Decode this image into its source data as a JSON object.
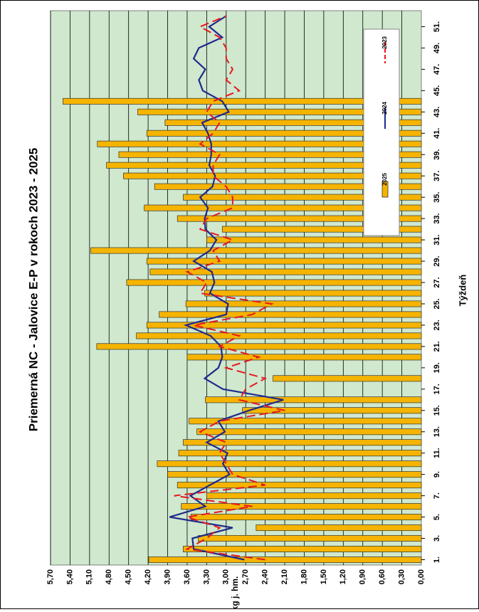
{
  "chart_data": {
    "type": "bar",
    "title": "Priemerná NC - Jalovice E-P v rokoch 2023 - 2025",
    "xlabel": "Týždeň",
    "ylabel": "€/kg j. hm.",
    "ylim": [
      0,
      5.7
    ],
    "grid": true,
    "legend_position": "top-right",
    "yticks": [
      "0,00",
      "0,30",
      "0,60",
      "0,90",
      "1,20",
      "1,50",
      "1,80",
      "2,10",
      "2,40",
      "2,70",
      "3,00",
      "3,30",
      "3,60",
      "3,90",
      "4,20",
      "4,50",
      "4,80",
      "5,10",
      "5,40",
      "5,70"
    ],
    "xticks": [
      "1.",
      "3.",
      "5.",
      "7.",
      "9.",
      "11.",
      "13.",
      "15.",
      "17.",
      "19.",
      "21.",
      "23.",
      "25.",
      "27.",
      "29.",
      "31.",
      "33.",
      "35.",
      "37.",
      "39.",
      "41.",
      "43.",
      "45.",
      "47.",
      "49.",
      "51."
    ],
    "categories": [
      1,
      2,
      3,
      4,
      5,
      6,
      7,
      8,
      9,
      10,
      11,
      12,
      13,
      14,
      15,
      16,
      17,
      18,
      19,
      20,
      21,
      22,
      23,
      24,
      25,
      26,
      27,
      28,
      29,
      30,
      31,
      32,
      33,
      34,
      35,
      36,
      37,
      38,
      39,
      40,
      41,
      42,
      43,
      44,
      45,
      46,
      47,
      48,
      49,
      50,
      51,
      52
    ],
    "series": [
      {
        "name": "2025",
        "type": "bar",
        "color": "#F5B400",
        "values": [
          4.19,
          3.66,
          3.43,
          2.54,
          3.54,
          3.69,
          3.3,
          3.75,
          3.9,
          4.06,
          3.73,
          3.66,
          3.45,
          3.57,
          2.75,
          3.32,
          null,
          2.28,
          null,
          3.6,
          4.99,
          4.38,
          4.22,
          4.03,
          3.62,
          3.33,
          4.53,
          4.17,
          4.22,
          5.08,
          3.3,
          3.06,
          3.75,
          4.26,
          3.66,
          4.1,
          4.58,
          4.84,
          4.65,
          4.98,
          4.22,
          3.94,
          4.36,
          5.51,
          null,
          null,
          null,
          null,
          null,
          null,
          null,
          null
        ]
      },
      {
        "name": "2024",
        "type": "line",
        "color": "#1F2A8C",
        "values": [
          2.72,
          3.5,
          3.52,
          2.9,
          3.87,
          3.32,
          3.55,
          3.25,
          2.95,
          3.05,
          2.98,
          3.3,
          3.02,
          3.12,
          2.65,
          2.12,
          3.05,
          3.33,
          3.12,
          3.06,
          3.08,
          3.24,
          3.62,
          3.0,
          2.97,
          3.25,
          3.18,
          3.22,
          3.5,
          3.25,
          3.15,
          3.32,
          3.33,
          3.28,
          3.4,
          3.21,
          3.17,
          3.26,
          3.23,
          3.23,
          3.28,
          3.37,
          2.96,
          3.06,
          3.36,
          3.42,
          3.32,
          3.5,
          3.42,
          3.06,
          3.26,
          3.0
        ]
      },
      {
        "name": "2023",
        "type": "line",
        "color": "#E8171E",
        "values": [
          2.4,
          3.6,
          3.3,
          3.1,
          3.6,
          2.6,
          3.8,
          2.4,
          2.9,
          3.0,
          3.1,
          3.0,
          3.4,
          3.1,
          2.1,
          2.8,
          2.7,
          2.4,
          3.0,
          2.5,
          3.1,
          2.8,
          3.5,
          2.6,
          2.3,
          3.4,
          3.3,
          3.6,
          3.1,
          3.2,
          2.9,
          3.4,
          3.3,
          2.9,
          2.9,
          3.0,
          3.2,
          3.2,
          3.1,
          3.4,
          3.2,
          3.1,
          3.3,
          3.2,
          2.8,
          3.0,
          2.9,
          3.0,
          3.0,
          3.1,
          3.4,
          3.0
        ]
      }
    ]
  }
}
